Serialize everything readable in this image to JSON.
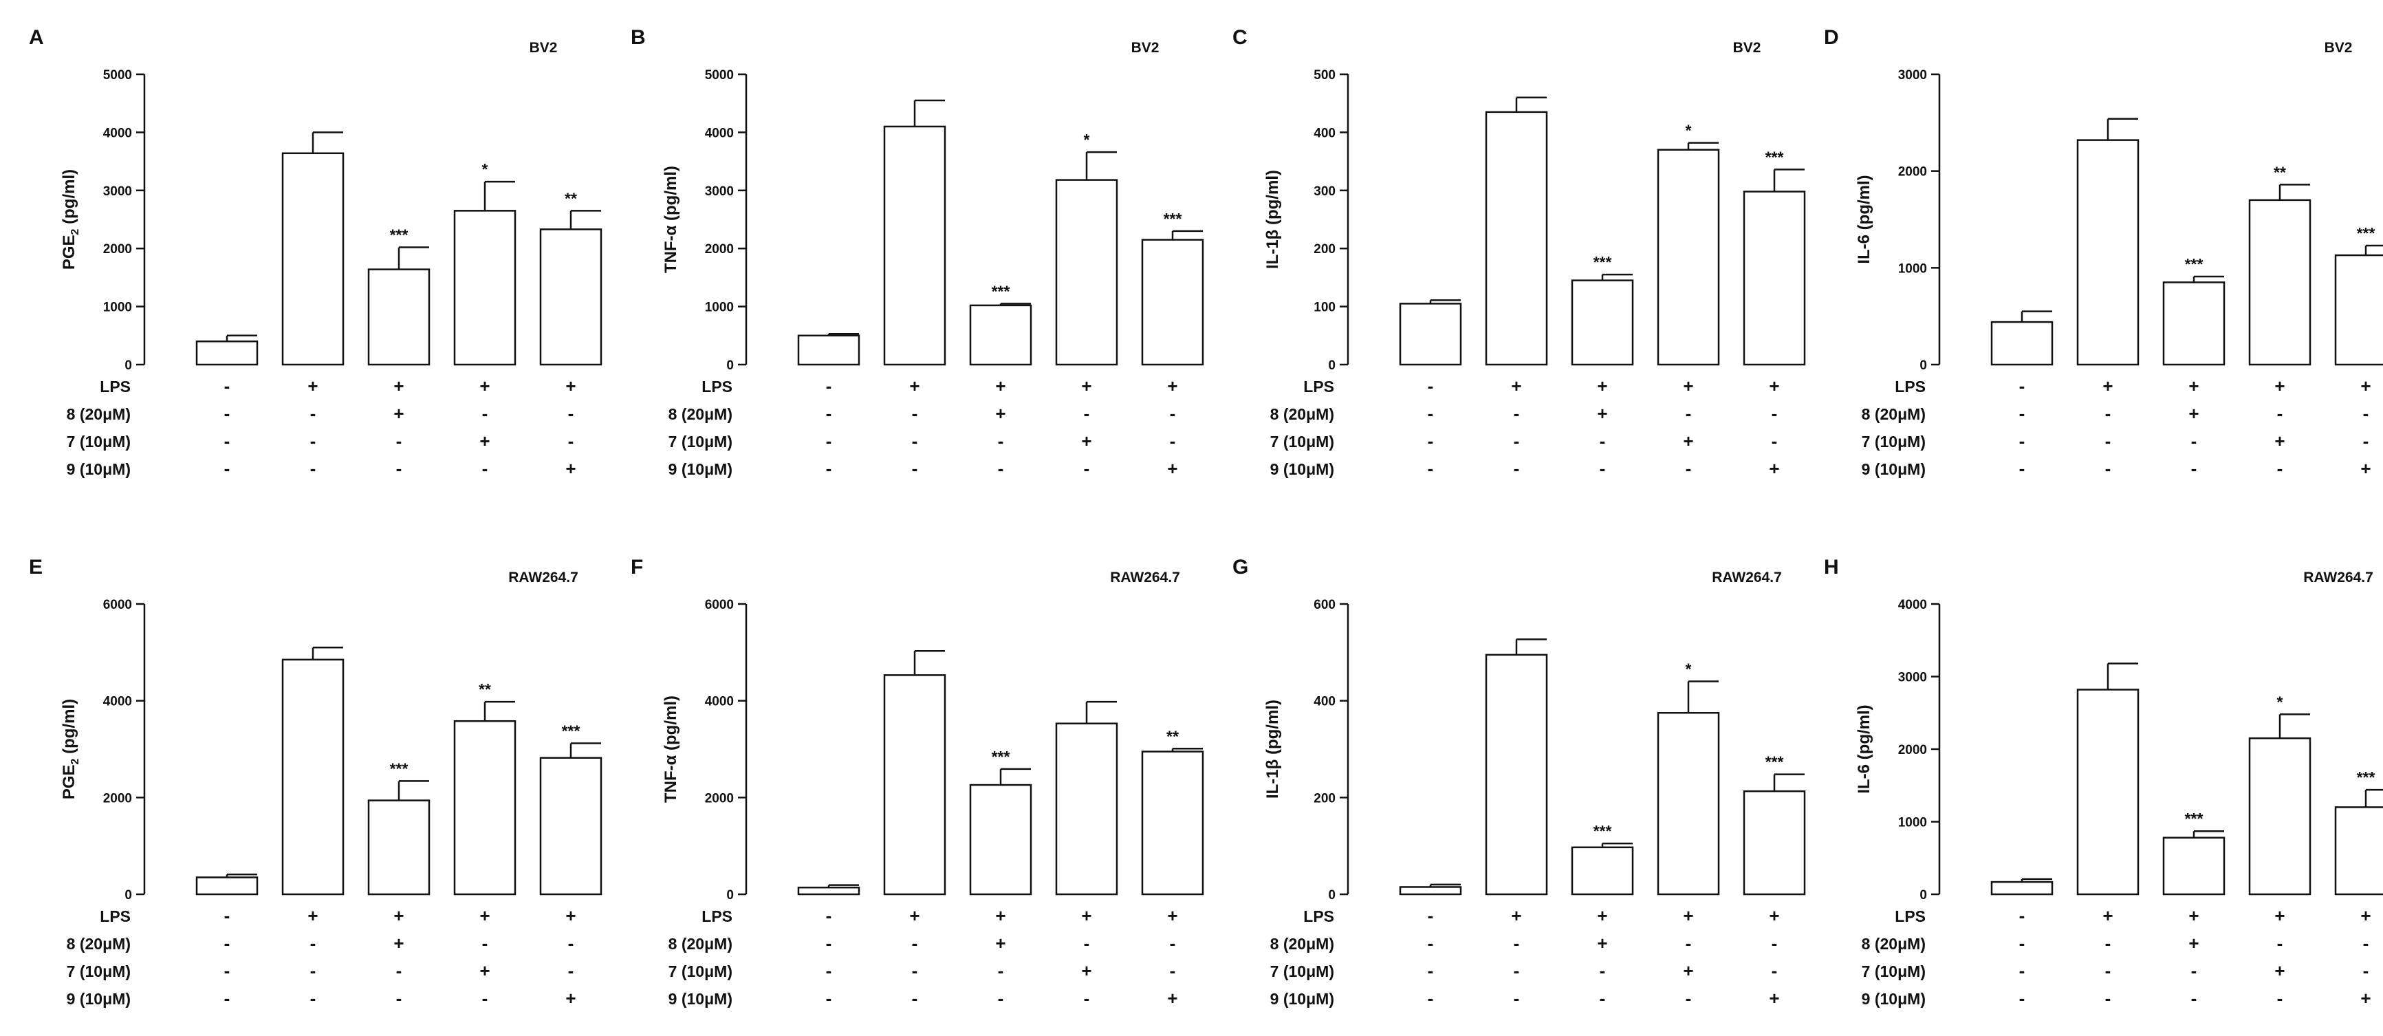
{
  "figure": {
    "treatments": {
      "labels": [
        "LPS",
        "8 (20μM)",
        "7 (10μM)",
        "9 (10μM)"
      ],
      "signs": [
        [
          "-",
          "+",
          "+",
          "+",
          "+"
        ],
        [
          "-",
          "-",
          "+",
          "-",
          "-"
        ],
        [
          "-",
          "-",
          "-",
          "+",
          "-"
        ],
        [
          "-",
          "-",
          "-",
          "-",
          "+"
        ]
      ]
    }
  },
  "chart_data": [
    {
      "type": "bar",
      "panel": "A",
      "cell_line": "BV2",
      "ylabel": "PGE2 (pg/ml)",
      "ylabel_main": "PGE",
      "ylabel_sub": "2",
      "ylabel_rest": " (pg/ml)",
      "ylim": [
        0,
        5000
      ],
      "yticks": [
        0,
        1000,
        2000,
        3000,
        4000,
        5000
      ],
      "values": [
        400,
        3640,
        1640,
        2650,
        2330
      ],
      "errors": [
        100,
        360,
        380,
        500,
        320
      ],
      "significance": [
        "",
        "",
        "***",
        "*",
        "**"
      ]
    },
    {
      "type": "bar",
      "panel": "B",
      "cell_line": "BV2",
      "ylabel": "TNF-α (pg/ml)",
      "ylabel_main": "TNF-α (pg/ml)",
      "ylabel_sub": "",
      "ylabel_rest": "",
      "ylim": [
        0,
        5000
      ],
      "yticks": [
        0,
        1000,
        2000,
        3000,
        4000,
        5000
      ],
      "values": [
        500,
        4100,
        1020,
        3180,
        2150
      ],
      "errors": [
        30,
        450,
        30,
        480,
        150
      ],
      "significance": [
        "",
        "",
        "***",
        "*",
        "***"
      ]
    },
    {
      "type": "bar",
      "panel": "C",
      "cell_line": "BV2",
      "ylabel": "IL-1β (pg/ml)",
      "ylabel_main": "IL-1β (pg/ml)",
      "ylabel_sub": "",
      "ylabel_rest": "",
      "ylim": [
        0,
        500
      ],
      "yticks": [
        0,
        100,
        200,
        300,
        400,
        500
      ],
      "values": [
        105,
        435,
        145,
        370,
        298
      ],
      "errors": [
        6,
        25,
        10,
        12,
        38
      ],
      "significance": [
        "",
        "",
        "***",
        "*",
        "***"
      ]
    },
    {
      "type": "bar",
      "panel": "D",
      "cell_line": "BV2",
      "ylabel": "IL-6 (pg/ml)",
      "ylabel_main": "IL-6 (pg/ml)",
      "ylabel_sub": "",
      "ylabel_rest": "",
      "ylim": [
        0,
        3000
      ],
      "yticks": [
        0,
        1000,
        2000,
        3000
      ],
      "values": [
        440,
        2320,
        850,
        1700,
        1130
      ],
      "errors": [
        110,
        220,
        60,
        160,
        100
      ],
      "significance": [
        "",
        "",
        "***",
        "**",
        "***"
      ]
    },
    {
      "type": "bar",
      "panel": "E",
      "cell_line": "RAW264.7",
      "ylabel": "PGE2 (pg/ml)",
      "ylabel_main": "PGE",
      "ylabel_sub": "2",
      "ylabel_rest": " (pg/ml)",
      "ylim": [
        0,
        6000
      ],
      "yticks": [
        0,
        2000,
        4000,
        6000
      ],
      "values": [
        350,
        4850,
        1940,
        3580,
        2820
      ],
      "errors": [
        60,
        250,
        400,
        400,
        300
      ],
      "significance": [
        "",
        "",
        "***",
        "**",
        "***"
      ]
    },
    {
      "type": "bar",
      "panel": "F",
      "cell_line": "RAW264.7",
      "ylabel": "TNF-α (pg/ml)",
      "ylabel_main": "TNF-α (pg/ml)",
      "ylabel_sub": "",
      "ylabel_rest": "",
      "ylim": [
        0,
        6000
      ],
      "yticks": [
        0,
        2000,
        4000,
        6000
      ],
      "values": [
        140,
        4530,
        2260,
        3530,
        2950
      ],
      "errors": [
        50,
        500,
        330,
        450,
        60
      ],
      "significance": [
        "",
        "",
        "***",
        "",
        "**"
      ]
    },
    {
      "type": "bar",
      "panel": "G",
      "cell_line": "RAW264.7",
      "ylabel": "IL-1β (pg/ml)",
      "ylabel_main": "IL-1β (pg/ml)",
      "ylabel_sub": "",
      "ylabel_rest": "",
      "ylim": [
        0,
        600
      ],
      "yticks": [
        0,
        200,
        400,
        600
      ],
      "values": [
        15,
        495,
        97,
        375,
        213
      ],
      "errors": [
        5,
        32,
        8,
        65,
        35
      ],
      "significance": [
        "",
        "",
        "***",
        "*",
        "***"
      ]
    },
    {
      "type": "bar",
      "panel": "H",
      "cell_line": "RAW264.7",
      "ylabel": "IL-6 (pg/ml)",
      "ylabel_main": "IL-6 (pg/ml)",
      "ylabel_sub": "",
      "ylabel_rest": "",
      "ylim": [
        0,
        4000
      ],
      "yticks": [
        0,
        1000,
        2000,
        3000,
        4000
      ],
      "values": [
        170,
        2820,
        780,
        2150,
        1200
      ],
      "errors": [
        40,
        360,
        90,
        330,
        240
      ],
      "significance": [
        "",
        "",
        "***",
        "*",
        "***"
      ]
    }
  ]
}
